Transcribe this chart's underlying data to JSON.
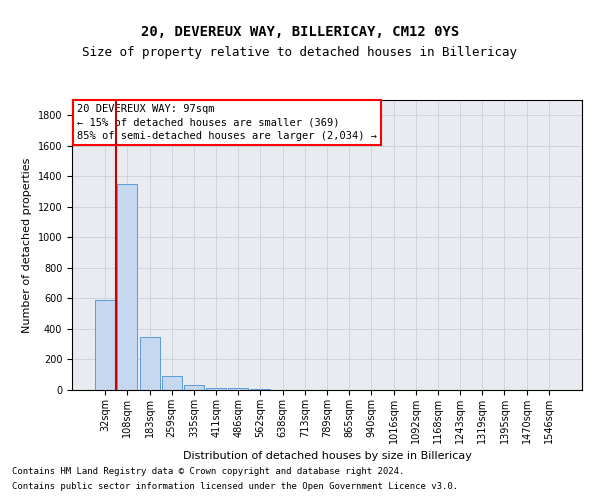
{
  "title1": "20, DEVEREUX WAY, BILLERICAY, CM12 0YS",
  "title2": "Size of property relative to detached houses in Billericay",
  "xlabel": "Distribution of detached houses by size in Billericay",
  "ylabel": "Number of detached properties",
  "categories": [
    "32sqm",
    "108sqm",
    "183sqm",
    "259sqm",
    "335sqm",
    "411sqm",
    "486sqm",
    "562sqm",
    "638sqm",
    "713sqm",
    "789sqm",
    "865sqm",
    "940sqm",
    "1016sqm",
    "1092sqm",
    "1168sqm",
    "1243sqm",
    "1319sqm",
    "1395sqm",
    "1470sqm",
    "1546sqm"
  ],
  "values": [
    590,
    1350,
    350,
    90,
    30,
    15,
    10,
    5,
    0,
    0,
    0,
    0,
    0,
    0,
    0,
    0,
    0,
    0,
    0,
    0,
    0
  ],
  "bar_color": "#c5d8f0",
  "bar_edge_color": "#5b9bd5",
  "annotation_text_line1": "20 DEVEREUX WAY: 97sqm",
  "annotation_text_line2": "← 15% of detached houses are smaller (369)",
  "annotation_text_line3": "85% of semi-detached houses are larger (2,034) →",
  "vline_color": "#cc0000",
  "vline_x_data": 0.5,
  "ylim": [
    0,
    1900
  ],
  "yticks": [
    0,
    200,
    400,
    600,
    800,
    1000,
    1200,
    1400,
    1600,
    1800
  ],
  "grid_color": "#c8d0d8",
  "background_color": "#e8ecf0",
  "footer1": "Contains HM Land Registry data © Crown copyright and database right 2024.",
  "footer2": "Contains public sector information licensed under the Open Government Licence v3.0.",
  "title1_fontsize": 10,
  "title2_fontsize": 9,
  "xlabel_fontsize": 8,
  "ylabel_fontsize": 8,
  "tick_fontsize": 7,
  "annotation_fontsize": 7.5,
  "footer_fontsize": 6.5
}
